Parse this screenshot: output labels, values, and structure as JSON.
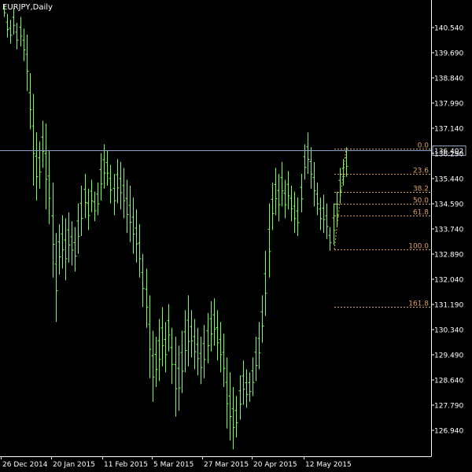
{
  "window": {
    "symbol_label": "EURJPY,Daily"
  },
  "colors": {
    "background": "#000000",
    "axis": "#ffffff",
    "candle": "#7CFC5A",
    "current_price_line": "#8fa3c8",
    "fibonacci": "#e0a060"
  },
  "chart_data": {
    "type": "line",
    "title": "EURJPY,Daily",
    "xlabel": "",
    "ylabel": "",
    "ylim": [
      126.3,
      141.5
    ],
    "y_ticks": [
      "140.540",
      "139.690",
      "138.840",
      "137.990",
      "137.140",
      "136.290",
      "135.440",
      "134.590",
      "133.740",
      "132.890",
      "132.040",
      "131.190",
      "130.340",
      "129.490",
      "128.640",
      "127.790",
      "126.940"
    ],
    "x_ticks": [
      "26 Dec 2014",
      "20 Jan 2015",
      "11 Feb 2015",
      "5 Mar 2015",
      "27 Mar 2015",
      "20 Apr 2015",
      "12 May 2015"
    ],
    "current_price": "136.402",
    "grid": false,
    "series": [
      {
        "values": [
          [
            141.3,
            140.9
          ],
          [
            141.0,
            140.2
          ],
          [
            140.8,
            140.0
          ],
          [
            141.2,
            140.3
          ],
          [
            140.7,
            139.8
          ],
          [
            140.9,
            139.9
          ],
          [
            140.5,
            139.4
          ],
          [
            140.3,
            138.4
          ],
          [
            139.0,
            137.1
          ],
          [
            138.3,
            135.2
          ],
          [
            137.0,
            134.7
          ],
          [
            136.7,
            135.1
          ],
          [
            137.4,
            135.8
          ],
          [
            137.3,
            134.4
          ],
          [
            136.4,
            133.9
          ],
          [
            135.3,
            132.1
          ],
          [
            133.6,
            130.6
          ],
          [
            133.9,
            132.2
          ],
          [
            134.2,
            132.4
          ],
          [
            134.1,
            132.0
          ],
          [
            134.3,
            132.6
          ],
          [
            134.0,
            132.5
          ],
          [
            133.8,
            132.3
          ],
          [
            134.6,
            132.9
          ],
          [
            135.2,
            133.5
          ],
          [
            135.6,
            134.1
          ],
          [
            135.1,
            133.7
          ],
          [
            135.4,
            134.3
          ],
          [
            135.0,
            134.0
          ],
          [
            135.3,
            134.2
          ],
          [
            136.3,
            134.7
          ],
          [
            136.6,
            135.1
          ],
          [
            136.4,
            135.2
          ],
          [
            135.9,
            134.6
          ],
          [
            135.6,
            134.2
          ],
          [
            136.1,
            134.6
          ],
          [
            136.0,
            134.4
          ],
          [
            135.8,
            134.1
          ],
          [
            135.4,
            133.6
          ],
          [
            135.2,
            133.3
          ],
          [
            134.8,
            132.9
          ],
          [
            134.4,
            132.6
          ],
          [
            133.9,
            132.1
          ],
          [
            132.9,
            131.1
          ],
          [
            132.4,
            130.4
          ],
          [
            131.5,
            128.7
          ],
          [
            130.3,
            127.9
          ],
          [
            130.1,
            128.4
          ],
          [
            130.7,
            128.6
          ],
          [
            131.1,
            129.1
          ],
          [
            130.6,
            128.9
          ],
          [
            131.2,
            129.6
          ],
          [
            130.4,
            128.5
          ],
          [
            130.1,
            127.4
          ],
          [
            129.8,
            127.6
          ],
          [
            130.3,
            128.2
          ],
          [
            131.0,
            128.9
          ],
          [
            131.5,
            129.1
          ],
          [
            131.0,
            129.4
          ],
          [
            130.7,
            129.0
          ],
          [
            130.4,
            128.8
          ],
          [
            130.1,
            128.5
          ],
          [
            130.5,
            128.7
          ],
          [
            130.9,
            129.2
          ],
          [
            131.3,
            129.6
          ],
          [
            131.4,
            129.8
          ],
          [
            131.0,
            129.3
          ],
          [
            130.6,
            128.9
          ],
          [
            130.2,
            128.4
          ],
          [
            129.4,
            127.0
          ],
          [
            128.9,
            126.6
          ],
          [
            128.4,
            126.3
          ],
          [
            128.1,
            126.7
          ],
          [
            128.8,
            127.3
          ],
          [
            129.3,
            127.8
          ],
          [
            129.0,
            127.7
          ],
          [
            128.9,
            127.9
          ],
          [
            129.4,
            128.1
          ],
          [
            130.1,
            128.6
          ],
          [
            130.6,
            129.0
          ],
          [
            131.5,
            129.9
          ],
          [
            133.0,
            130.8
          ],
          [
            134.6,
            132.1
          ],
          [
            135.3,
            133.7
          ],
          [
            135.8,
            134.2
          ],
          [
            135.6,
            134.0
          ],
          [
            136.0,
            134.5
          ],
          [
            135.4,
            134.1
          ],
          [
            135.7,
            134.4
          ],
          [
            135.2,
            134.0
          ],
          [
            135.0,
            133.6
          ],
          [
            134.8,
            133.5
          ],
          [
            135.6,
            134.3
          ],
          [
            136.6,
            135.4
          ],
          [
            137.0,
            135.6
          ],
          [
            136.5,
            135.1
          ],
          [
            136.0,
            134.5
          ],
          [
            135.3,
            134.2
          ],
          [
            134.8,
            133.7
          ],
          [
            134.9,
            133.6
          ],
          [
            134.6,
            133.4
          ],
          [
            133.8,
            133.0
          ],
          [
            134.6,
            133.2
          ],
          [
            135.0,
            133.8
          ],
          [
            135.8,
            134.6
          ],
          [
            136.1,
            135.2
          ],
          [
            136.5,
            135.5
          ]
        ]
      }
    ],
    "fibonacci_levels": [
      {
        "label": "0.0",
        "value": 136.45
      },
      {
        "label": "23.6",
        "value": 135.6
      },
      {
        "label": "38.2",
        "value": 135.0
      },
      {
        "label": "50.0",
        "value": 134.6
      },
      {
        "label": "61.8",
        "value": 134.2
      },
      {
        "label": "100.0",
        "value": 133.05
      },
      {
        "label": "161.8",
        "value": 131.1
      }
    ]
  }
}
